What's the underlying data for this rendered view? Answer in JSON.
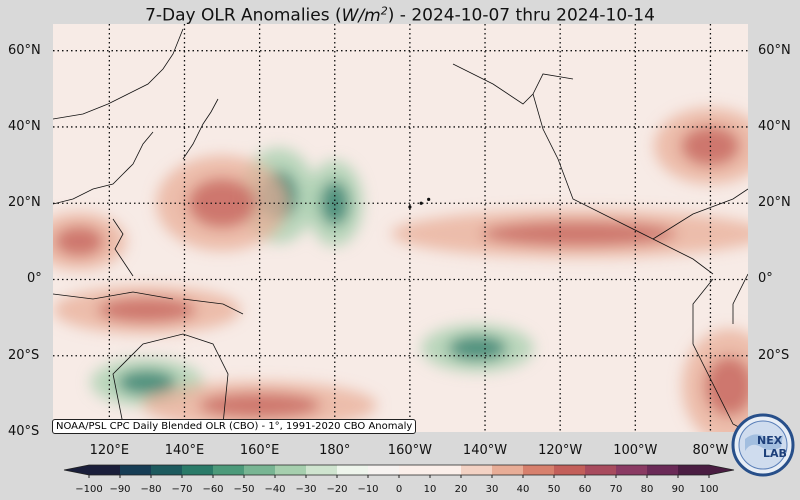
{
  "header": {
    "title_prefix": "7-Day OLR Anomalies (",
    "title_units": "W/m",
    "title_units_exp": "2",
    "title_suffix": ") - 2024-10-07 thru 2024-10-14"
  },
  "map": {
    "lat_labels": [
      "60°N",
      "40°N",
      "20°N",
      "0°",
      "20°S",
      "40°S"
    ],
    "lon_labels": [
      "120°E",
      "140°E",
      "160°E",
      "180°",
      "160°W",
      "140°W",
      "120°W",
      "100°W",
      "80°W"
    ],
    "lat_range": [
      -40,
      67
    ],
    "lon_range": [
      105,
      290
    ],
    "lats": [
      60,
      40,
      20,
      0,
      -20,
      -40
    ],
    "lons": [
      120,
      140,
      160,
      180,
      200,
      220,
      240,
      260,
      280
    ],
    "source_text": "NOAA/PSL CPC Daily Blended OLR (CBO) - 1°, 1991-2020 CBO Anomaly",
    "anomaly_features": [
      {
        "kind": "negative",
        "center": [
          165,
          22
        ],
        "radius": [
          8,
          10
        ]
      },
      {
        "kind": "negative",
        "center": [
          180,
          20
        ],
        "radius": [
          6,
          9
        ]
      },
      {
        "kind": "negative",
        "center": [
          218,
          -18
        ],
        "radius": [
          12,
          5
        ]
      },
      {
        "kind": "negative",
        "center": [
          130,
          -27
        ],
        "radius": [
          12,
          5
        ]
      },
      {
        "kind": "positive",
        "center": [
          112,
          10
        ],
        "radius": [
          10,
          6
        ]
      },
      {
        "kind": "positive",
        "center": [
          150,
          20
        ],
        "radius": [
          14,
          10
        ]
      },
      {
        "kind": "positive",
        "center": [
          245,
          12
        ],
        "radius": [
          40,
          5
        ]
      },
      {
        "kind": "positive",
        "center": [
          280,
          35
        ],
        "radius": [
          12,
          8
        ]
      },
      {
        "kind": "positive",
        "center": [
          130,
          -8
        ],
        "radius": [
          20,
          5
        ]
      },
      {
        "kind": "positive",
        "center": [
          285,
          -28
        ],
        "radius": [
          10,
          12
        ]
      },
      {
        "kind": "positive",
        "center": [
          160,
          -33
        ],
        "radius": [
          25,
          5
        ]
      }
    ]
  },
  "colorbar": {
    "ticks": [
      "−100",
      "−90",
      "−80",
      "−70",
      "−60",
      "−50",
      "−40",
      "−30",
      "−20",
      "−10",
      "0",
      "10",
      "20",
      "30",
      "40",
      "50",
      "60",
      "70",
      "80",
      "90",
      "100"
    ],
    "range": [
      -100,
      100
    ],
    "neg_colors": [
      "#1a1e3a",
      "#173d55",
      "#1d5a5e",
      "#2a7a68",
      "#4c9a7a",
      "#78b593",
      "#a6cfae",
      "#cfe4cf",
      "#eef5ec"
    ],
    "pos_colors": [
      "#fbefea",
      "#f3d2c4",
      "#e8ad97",
      "#d7806d",
      "#c35f5a",
      "#a84b5e",
      "#8a3a63",
      "#6a2a57",
      "#4a1d42"
    ]
  },
  "logo": {
    "text": "NEX",
    "text2": "LAB"
  }
}
